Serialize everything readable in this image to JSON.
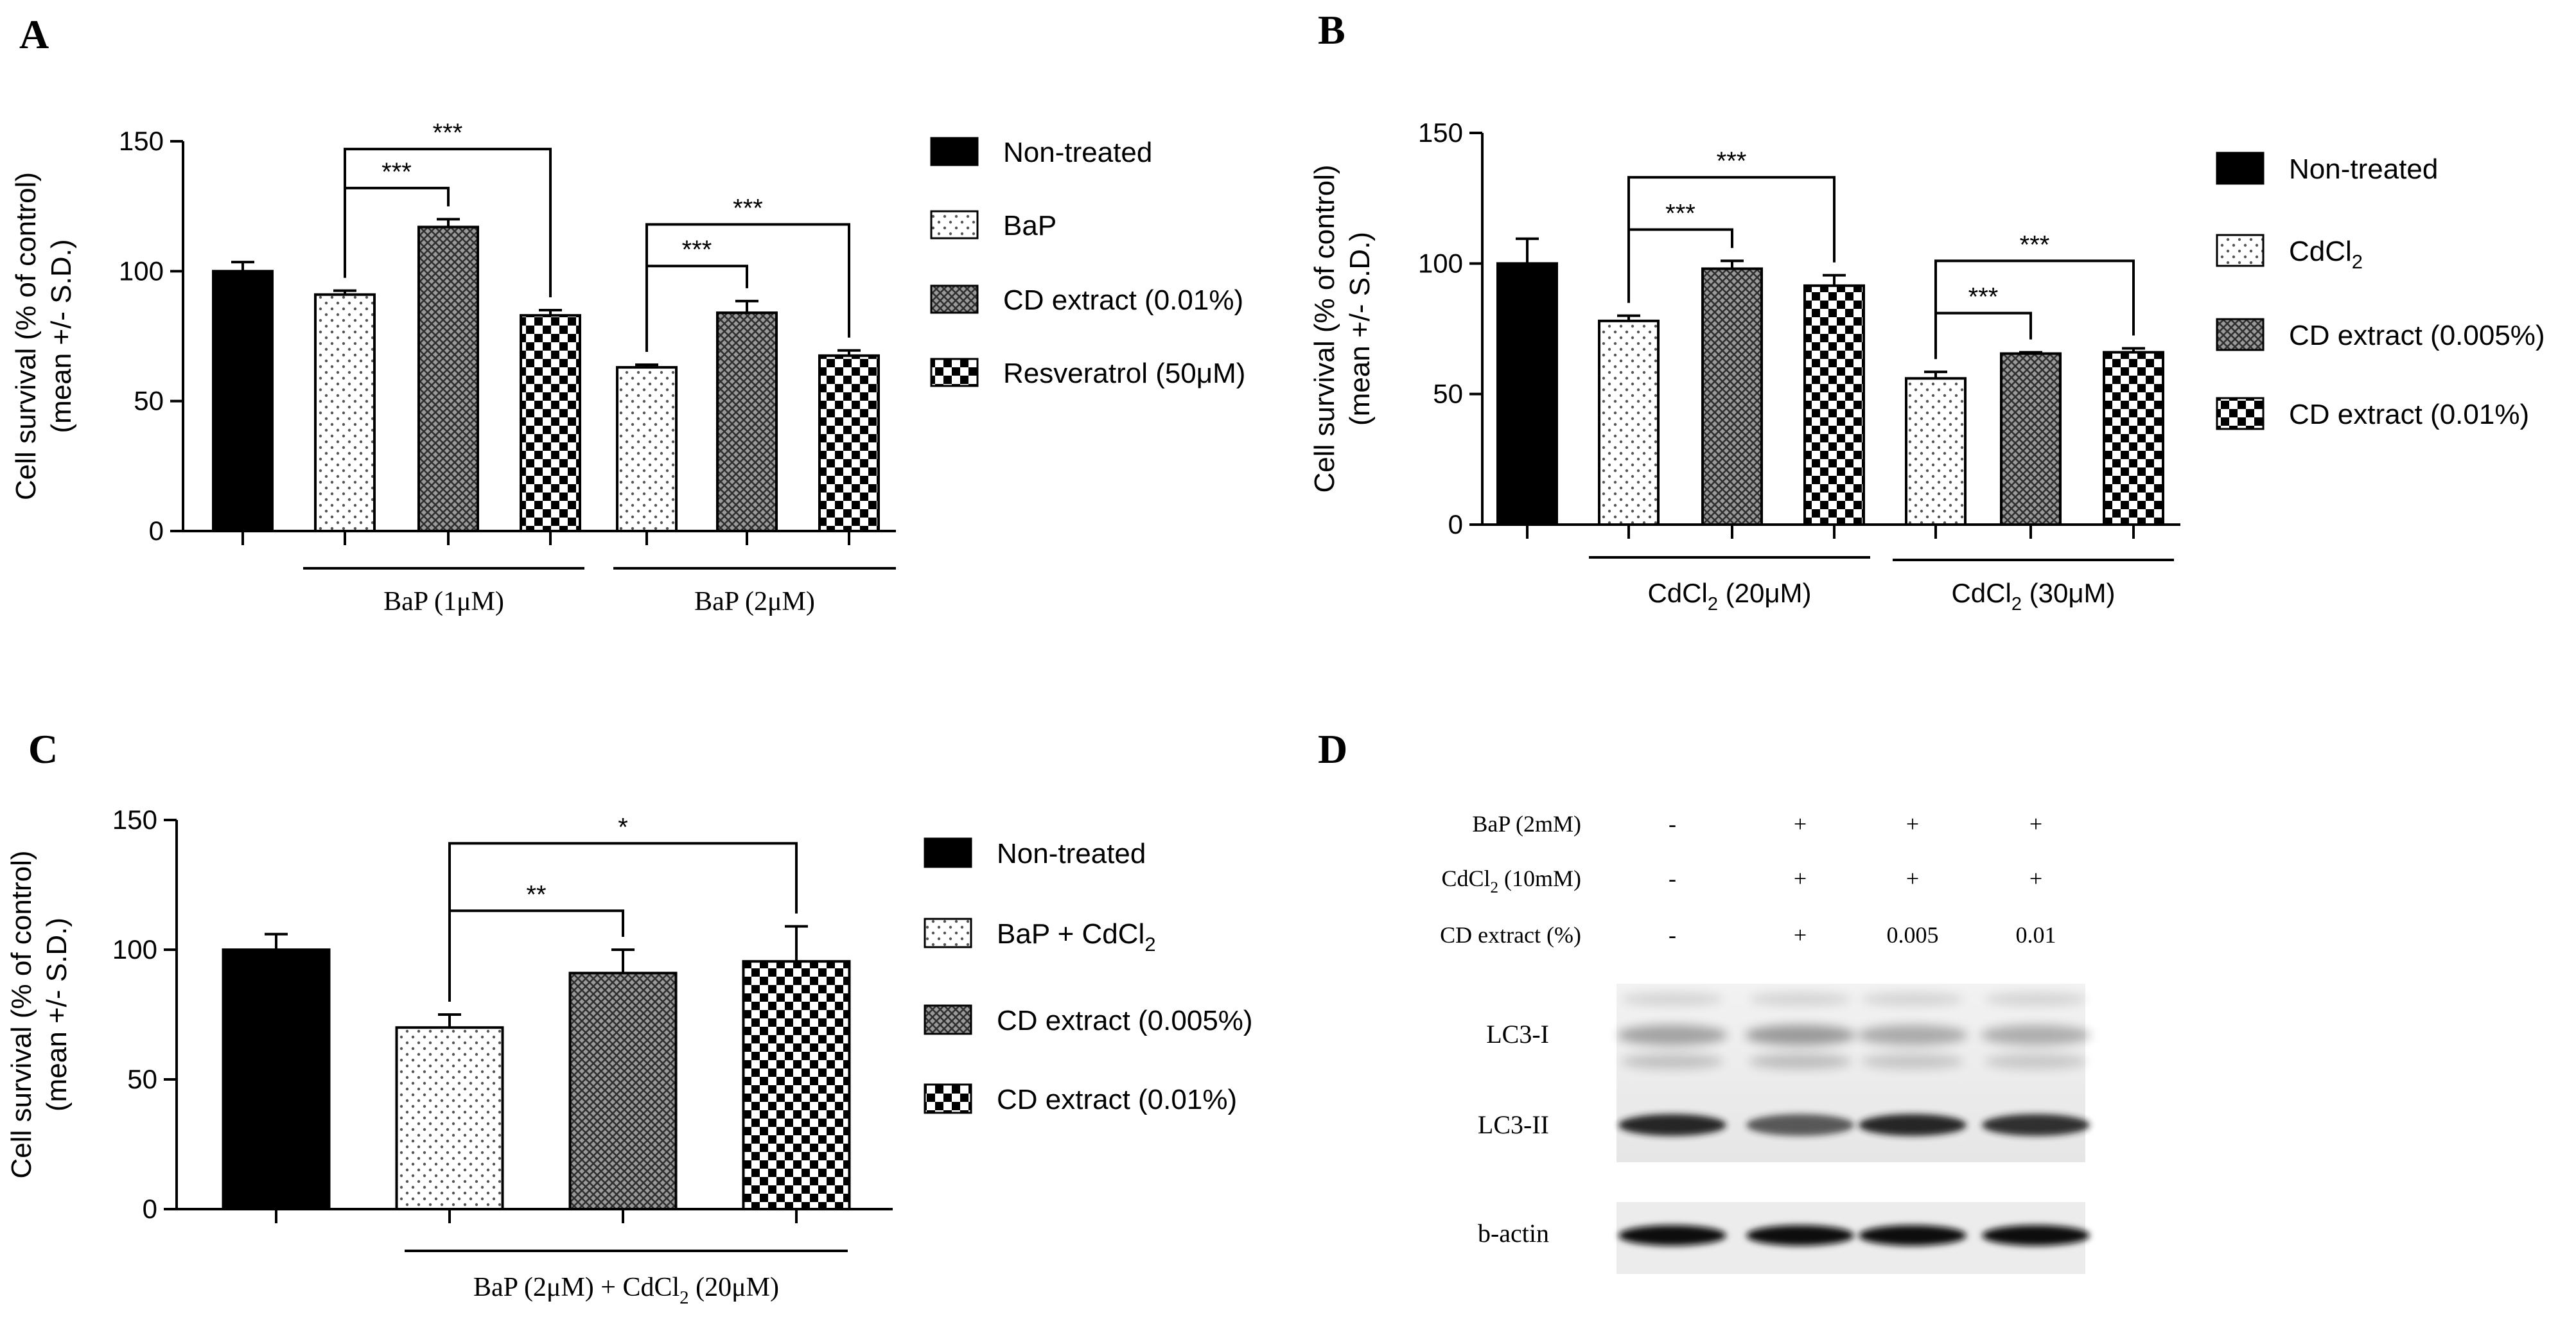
{
  "colors": {
    "ink": "#000000",
    "paper": "#ffffff",
    "blot_bg": "#ececec",
    "band": "#1e1e1e"
  },
  "chart_data": [
    {
      "panel_label": "A",
      "type": "bar",
      "ylabel_line1": "Cell survival (% of control)",
      "ylabel_line2": "(mean +/- S.D.)",
      "ylim": [
        0,
        150
      ],
      "yticks": [
        0,
        50,
        100,
        150
      ],
      "bars": [
        {
          "name": "Non-treated",
          "value": 100,
          "err": 3.5,
          "pattern": "solid"
        },
        {
          "name": "BaP",
          "value": 91,
          "err": 1.5,
          "pattern": "dots"
        },
        {
          "name": "CD extract (0.01%)",
          "value": 117,
          "err": 3,
          "pattern": "cross"
        },
        {
          "name": "Resveratrol (50μM)",
          "value": 83,
          "err": 2,
          "pattern": "checker"
        },
        {
          "name": "BaP",
          "value": 63,
          "err": 1,
          "pattern": "dots"
        },
        {
          "name": "CD extract (0.01%)",
          "value": 84,
          "err": 4.5,
          "pattern": "cross"
        },
        {
          "name": "Resveratrol (50μM)",
          "value": 67.5,
          "err": 2,
          "pattern": "checker"
        }
      ],
      "groups": [
        {
          "label": "BaP (1μM)",
          "from": 1,
          "to": 3
        },
        {
          "label": "BaP (2μM)",
          "from": 4,
          "to": 6
        }
      ],
      "significance": [
        {
          "from": 1,
          "to": 2,
          "level": 132,
          "label": "***"
        },
        {
          "from": 1,
          "to": 3,
          "level": 147,
          "label": "***"
        },
        {
          "from": 4,
          "to": 5,
          "level": 102,
          "label": "***"
        },
        {
          "from": 4,
          "to": 6,
          "level": 118,
          "label": "***"
        }
      ],
      "legend": [
        {
          "label": "Non-treated",
          "pattern": "solid"
        },
        {
          "label": "BaP",
          "pattern": "dots"
        },
        {
          "label": "CD extract (0.01%)",
          "pattern": "cross"
        },
        {
          "label": "Resveratrol (50μM)",
          "pattern": "checker"
        }
      ]
    },
    {
      "panel_label": "B",
      "type": "bar",
      "ylabel_line1": "Cell survival (% of control)",
      "ylabel_line2": "(mean +/- S.D.)",
      "ylim": [
        0,
        150
      ],
      "yticks": [
        0,
        50,
        100,
        150
      ],
      "bars": [
        {
          "name": "Non-treated",
          "value": 100,
          "err": 9.5,
          "pattern": "solid"
        },
        {
          "name": "CdCl2",
          "value": 78,
          "err": 2,
          "pattern": "dots"
        },
        {
          "name": "CD extract (0.005%)",
          "value": 98,
          "err": 3,
          "pattern": "cross"
        },
        {
          "name": "CD extract (0.01%)",
          "value": 91.5,
          "err": 4,
          "pattern": "checker"
        },
        {
          "name": "CdCl2",
          "value": 56,
          "err": 2.5,
          "pattern": "dots"
        },
        {
          "name": "CD extract (0.005%)",
          "value": 65.5,
          "err": 0.5,
          "pattern": "cross"
        },
        {
          "name": "CD extract (0.01%)",
          "value": 66,
          "err": 1.5,
          "pattern": "checker"
        }
      ],
      "groups": [
        {
          "label_main": "CdCl",
          "label_sub": "2",
          "label_tail": " (20μM)",
          "from": 1,
          "to": 3
        },
        {
          "label_main": "CdCl",
          "label_sub": "2",
          "label_tail": " (30μM)",
          "from": 4,
          "to": 6
        }
      ],
      "significance": [
        {
          "from": 1,
          "to": 2,
          "level": 113,
          "label": "***"
        },
        {
          "from": 1,
          "to": 3,
          "level": 133,
          "label": "***"
        },
        {
          "from": 4,
          "to": 5,
          "level": 81,
          "label": "***"
        },
        {
          "from": 4,
          "to": 6,
          "level": 101,
          "label": "***"
        }
      ],
      "legend": [
        {
          "label": "Non-treated",
          "pattern": "solid"
        },
        {
          "label_main": "CdCl",
          "label_sub": "2",
          "pattern": "dots"
        },
        {
          "label": "CD extract (0.005%)",
          "pattern": "cross"
        },
        {
          "label": "CD extract (0.01%)",
          "pattern": "checker"
        }
      ]
    },
    {
      "panel_label": "C",
      "type": "bar",
      "ylabel_line1": "Cell survival (% of control)",
      "ylabel_line2": "(mean +/- S.D.)",
      "ylim": [
        0,
        150
      ],
      "yticks": [
        0,
        50,
        100,
        150
      ],
      "bars": [
        {
          "name": "Non-treated",
          "value": 100,
          "err": 6,
          "pattern": "solid"
        },
        {
          "name": "BaP + CdCl2",
          "value": 70,
          "err": 5,
          "pattern": "dots"
        },
        {
          "name": "CD extract (0.005%)",
          "value": 91,
          "err": 9,
          "pattern": "cross"
        },
        {
          "name": "CD extract (0.01%)",
          "value": 95.5,
          "err": 13.5,
          "pattern": "checker"
        }
      ],
      "groups": [
        {
          "label_main": "BaP (2μM) + CdCl",
          "label_sub": "2",
          "label_tail": " (20μM)",
          "from": 1,
          "to": 3
        }
      ],
      "significance": [
        {
          "from": 1,
          "to": 2,
          "level": 115,
          "label": "**"
        },
        {
          "from": 1,
          "to": 3,
          "level": 141,
          "label": "*"
        }
      ],
      "legend": [
        {
          "label": "Non-treated",
          "pattern": "solid"
        },
        {
          "label_main": "BaP + CdCl",
          "label_sub": "2",
          "pattern": "dots"
        },
        {
          "label": "CD extract (0.005%)",
          "pattern": "cross"
        },
        {
          "label": "CD extract (0.01%)",
          "pattern": "checker"
        }
      ]
    }
  ],
  "western_blot": {
    "panel_label": "D",
    "rows": [
      {
        "label": "BaP (2mM)",
        "values": [
          "-",
          "+",
          "+",
          "+"
        ]
      },
      {
        "label_main": "CdCl",
        "label_sub": "2",
        "label_tail": " (10mM)",
        "values": [
          "-",
          "+",
          "+",
          "+"
        ]
      },
      {
        "label": "CD extract (%)",
        "values": [
          "-",
          "+",
          "0.005",
          "0.01"
        ]
      }
    ],
    "band_labels": [
      "LC3-I",
      "LC3-II",
      "b-actin"
    ],
    "lc3_1_intensity": [
      0.45,
      0.5,
      0.4,
      0.38
    ],
    "lc3_2_intensity": [
      0.95,
      0.7,
      0.95,
      0.9
    ],
    "actin_intensity": [
      1,
      1,
      1,
      1
    ]
  }
}
